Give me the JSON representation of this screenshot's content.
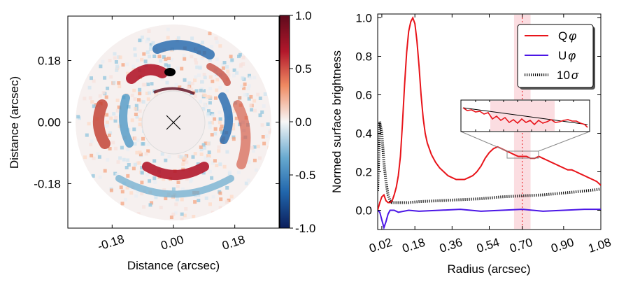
{
  "chart_data": [
    {
      "type": "heatmap",
      "xlabel": "Distance (arcsec)",
      "ylabel": "Distance (arcsec)",
      "xticks": [
        "-0.18",
        "0.00",
        "0.18"
      ],
      "xtick_values": [
        -0.18,
        0.0,
        0.18
      ],
      "yticks": [
        "0.18",
        "0.00",
        "-0.18"
      ],
      "ytick_values": [
        0.18,
        0.0,
        -0.18
      ],
      "xlim": [
        -0.31,
        0.31
      ],
      "ylim": [
        -0.31,
        0.31
      ],
      "colorbar": {
        "ticks": [
          "1.0",
          "0.5",
          "0.0",
          "-0.5",
          "-1.0"
        ],
        "tick_values": [
          1.0,
          0.5,
          0.0,
          -0.5,
          -1.0
        ],
        "range": [
          -1.0,
          1.0
        ],
        "colormap": "RdBu_r",
        "colors": [
          "#0b1e5b",
          "#2166ac",
          "#67a9cf",
          "#f7f7f7",
          "#ef8a62",
          "#b2182b",
          "#5e0a1c"
        ]
      },
      "mask_radius": 0.095,
      "outer_radius": 0.28,
      "star_marker": "x-icon",
      "beam_position": [
        -0.01,
        0.145
      ]
    },
    {
      "type": "line",
      "xlabel": "Radius (arcsec)",
      "ylabel": "Normed surface brightness",
      "xlim": [
        0.0,
        1.08
      ],
      "ylim": [
        -0.1,
        1.02
      ],
      "xticks": [
        "0.02",
        "0.18",
        "0.36",
        "0.54",
        "0.70",
        "0.90",
        "1.08"
      ],
      "xtick_values": [
        0.02,
        0.18,
        0.36,
        0.54,
        0.7,
        0.9,
        1.08
      ],
      "yticks": [
        "0.0",
        "0.2",
        "0.4",
        "0.6",
        "0.8",
        "1.0"
      ],
      "ytick_values": [
        0.0,
        0.2,
        0.4,
        0.6,
        0.8,
        1.0
      ],
      "shaded_band": [
        0.66,
        0.74
      ],
      "vline": 0.7,
      "legend": {
        "position": "top-right"
      },
      "series": [
        {
          "name": "Q",
          "symbol": "φ",
          "color": "#e8141a",
          "style": "solid",
          "x": [
            0.0,
            0.01,
            0.02,
            0.03,
            0.04,
            0.05,
            0.06,
            0.07,
            0.08,
            0.09,
            0.1,
            0.11,
            0.12,
            0.13,
            0.14,
            0.15,
            0.16,
            0.17,
            0.18,
            0.19,
            0.2,
            0.21,
            0.22,
            0.23,
            0.24,
            0.26,
            0.28,
            0.3,
            0.32,
            0.34,
            0.36,
            0.38,
            0.4,
            0.42,
            0.44,
            0.46,
            0.48,
            0.5,
            0.52,
            0.54,
            0.56,
            0.58,
            0.6,
            0.62,
            0.64,
            0.66,
            0.68,
            0.7,
            0.72,
            0.74,
            0.76,
            0.78,
            0.8,
            0.82,
            0.84,
            0.86,
            0.88,
            0.9,
            0.92,
            0.94,
            0.96,
            0.98,
            1.0,
            1.02,
            1.04,
            1.06,
            1.08
          ],
          "y": [
            0.0,
            0.04,
            0.07,
            0.08,
            0.05,
            0.04,
            0.04,
            0.05,
            0.08,
            0.12,
            0.18,
            0.28,
            0.45,
            0.65,
            0.82,
            0.93,
            0.98,
            1.0,
            0.97,
            0.88,
            0.75,
            0.6,
            0.48,
            0.4,
            0.35,
            0.29,
            0.25,
            0.22,
            0.2,
            0.18,
            0.17,
            0.16,
            0.16,
            0.16,
            0.17,
            0.18,
            0.2,
            0.23,
            0.27,
            0.3,
            0.32,
            0.33,
            0.32,
            0.31,
            0.3,
            0.29,
            0.28,
            0.28,
            0.28,
            0.27,
            0.27,
            0.28,
            0.27,
            0.26,
            0.25,
            0.24,
            0.23,
            0.22,
            0.21,
            0.21,
            0.2,
            0.19,
            0.18,
            0.17,
            0.16,
            0.15,
            0.13
          ]
        },
        {
          "name": "U",
          "symbol": "φ",
          "color": "#4b16e6",
          "style": "solid",
          "x": [
            0.0,
            0.01,
            0.02,
            0.03,
            0.04,
            0.05,
            0.06,
            0.08,
            0.1,
            0.15,
            0.2,
            0.3,
            0.4,
            0.5,
            0.6,
            0.7,
            0.8,
            0.9,
            1.0,
            1.08
          ],
          "y": [
            0.0,
            -0.01,
            -0.05,
            -0.09,
            -0.06,
            -0.02,
            0.0,
            0.0,
            -0.01,
            0.0,
            -0.005,
            0.0,
            0.005,
            -0.005,
            0.0,
            0.005,
            -0.005,
            0.0,
            0.005,
            0.005
          ]
        },
        {
          "name": "10",
          "symbol": "σ",
          "color": "#111111",
          "style": "dotted",
          "x": [
            0.0,
            0.01,
            0.02,
            0.03,
            0.04,
            0.05,
            0.06,
            0.07,
            0.08,
            0.09,
            0.1,
            0.15,
            0.2,
            0.3,
            0.4,
            0.5,
            0.6,
            0.7,
            0.8,
            0.9,
            1.0,
            1.08
          ],
          "y": [
            0.1,
            0.46,
            0.4,
            0.25,
            0.15,
            0.08,
            0.05,
            0.04,
            0.04,
            0.04,
            0.04,
            0.04,
            0.045,
            0.05,
            0.055,
            0.06,
            0.07,
            0.075,
            0.08,
            0.09,
            0.1,
            0.11
          ]
        }
      ]
    }
  ]
}
